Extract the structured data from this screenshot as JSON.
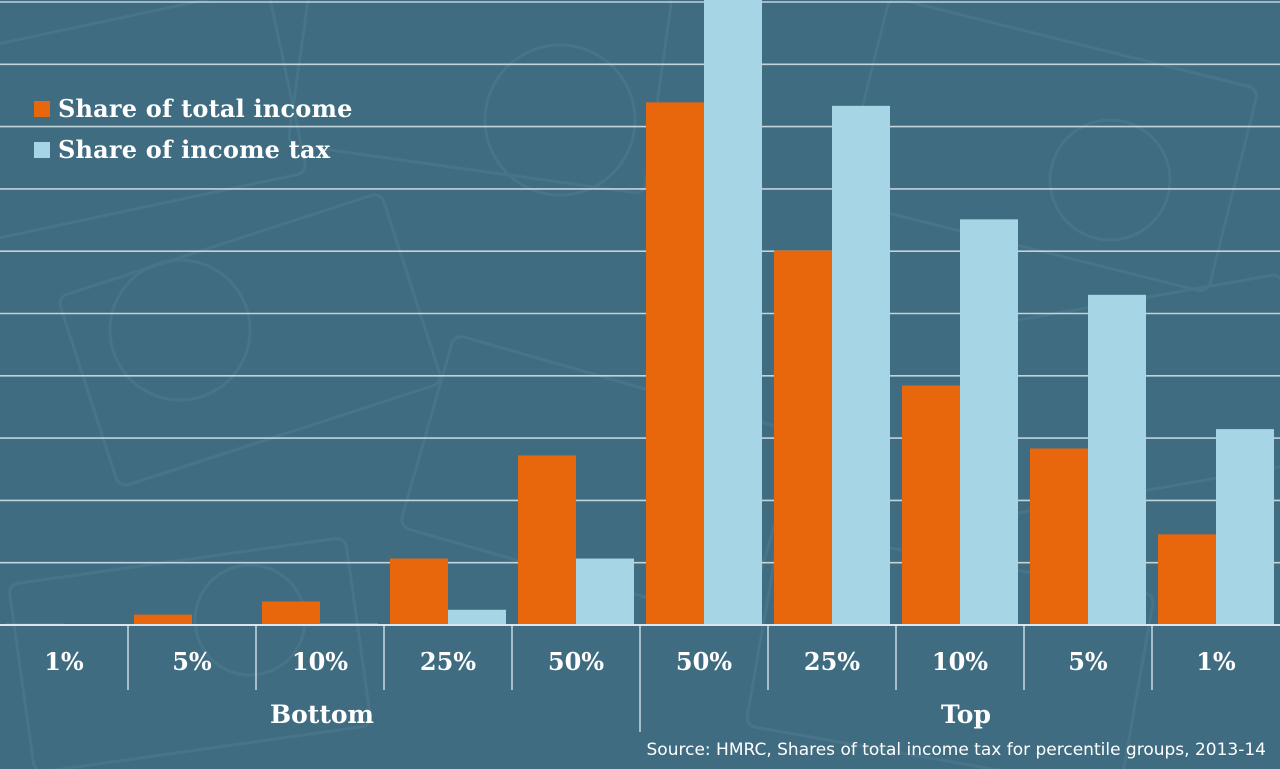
{
  "colors": {
    "background": "#3f6c80",
    "income": "#e8670d",
    "tax": "#a6d5e5",
    "grid": "#d9e6ec",
    "text": "#ffffff"
  },
  "legend": {
    "income_label": "Share of total income",
    "tax_label": "Share of income tax"
  },
  "groups": {
    "bottom_label": "Bottom",
    "top_label": "Top"
  },
  "source": "Source: HMRC, Shares of total income tax for percentile groups, 2013-14",
  "chart_data": {
    "type": "bar",
    "title": "",
    "xlabel": "",
    "ylabel": "",
    "ylim": [
      0,
      90
    ],
    "grid": true,
    "legend_position": "top-left",
    "groups": [
      {
        "label": "Bottom",
        "categories": [
          "1%",
          "5%",
          "10%",
          "25%",
          "50%"
        ]
      },
      {
        "label": "Top",
        "categories": [
          "50%",
          "25%",
          "10%",
          "5%",
          "1%"
        ]
      }
    ],
    "categories": [
      "1%",
      "5%",
      "10%",
      "25%",
      "50%",
      "50%",
      "25%",
      "10%",
      "5%",
      "1%"
    ],
    "series": [
      {
        "name": "Share of total income",
        "values": [
          0.2,
          1.5,
          3.4,
          9.6,
          24.5,
          75.5,
          54.1,
          34.6,
          25.5,
          13.1
        ]
      },
      {
        "name": "Share of income tax",
        "values": [
          0.0,
          0.0,
          0.2,
          2.2,
          9.6,
          90.4,
          75.0,
          58.6,
          47.7,
          28.3
        ]
      }
    ]
  }
}
